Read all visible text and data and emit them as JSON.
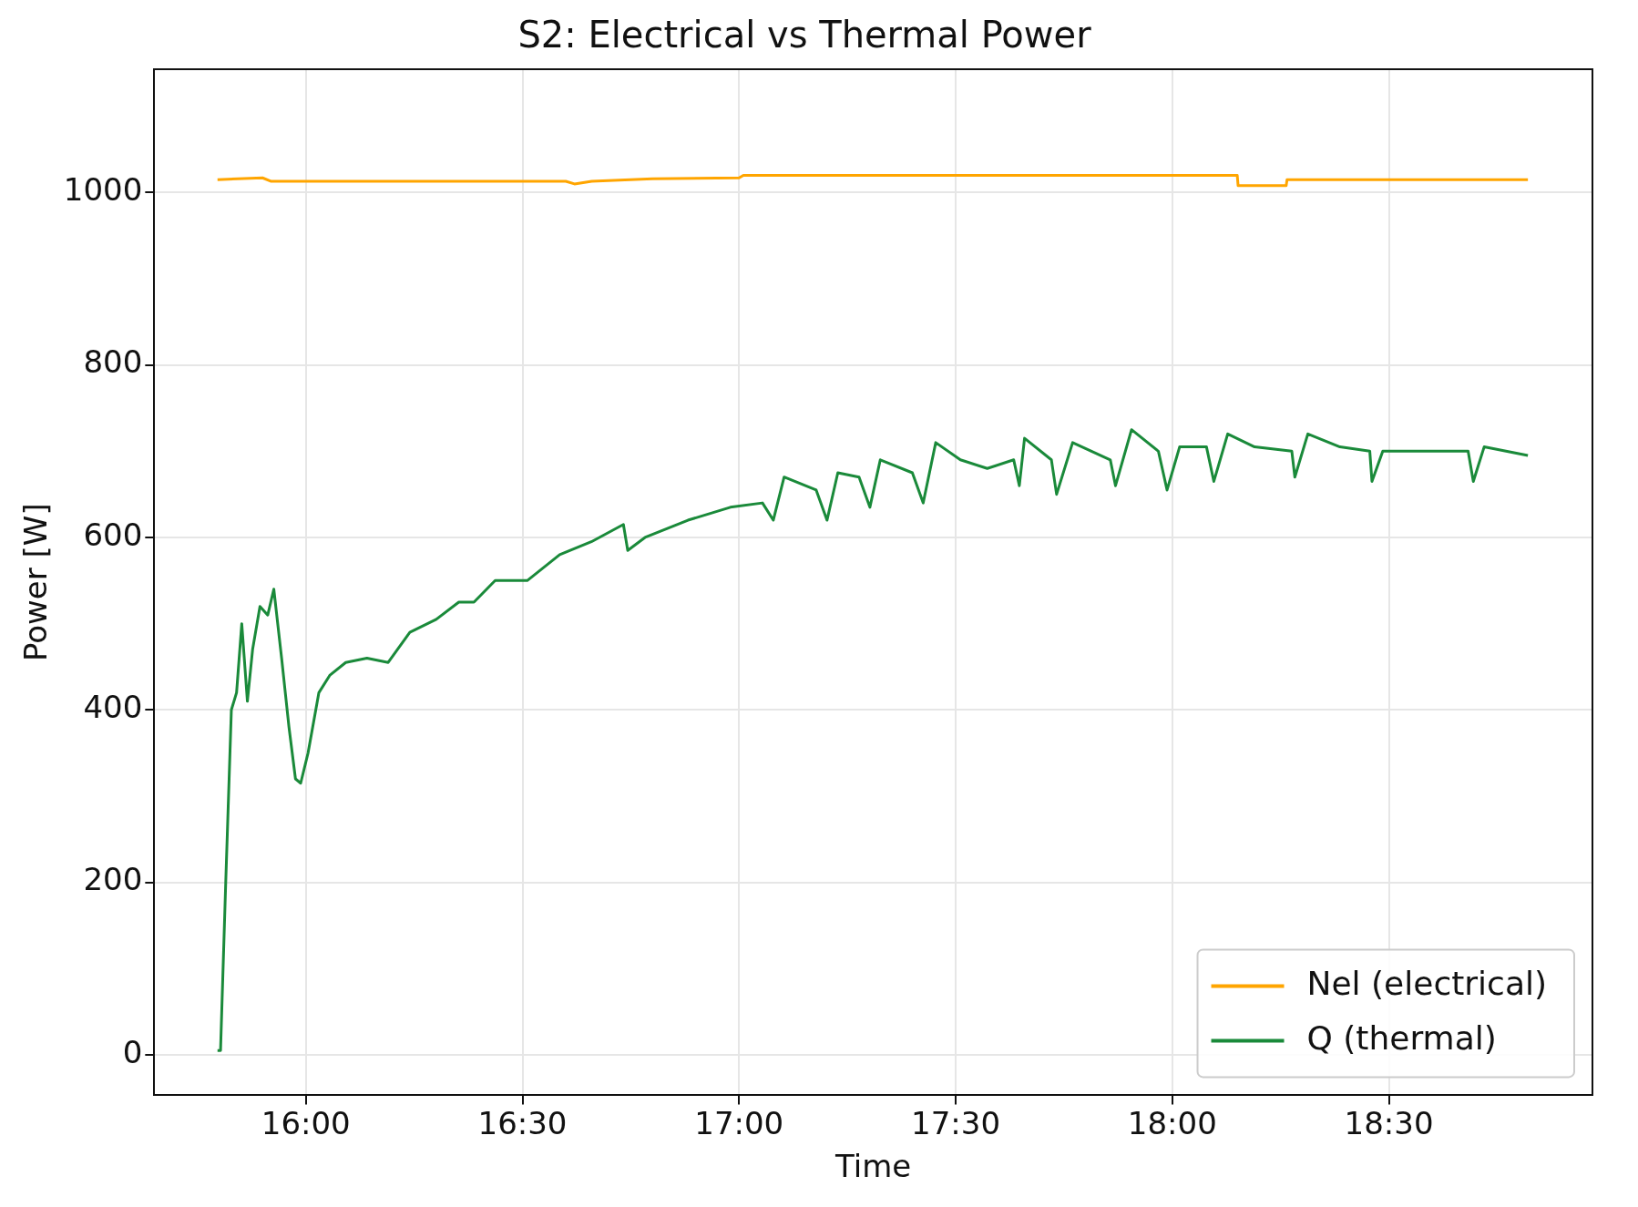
{
  "chart_data": {
    "type": "line",
    "title": "S2: Electrical vs Thermal Power",
    "xlabel": "Time",
    "ylabel": "Power [W]",
    "xlim": [
      15.65,
      18.97
    ],
    "xticks": [
      {
        "value": 16,
        "label": "16:00"
      },
      {
        "value": 16.5,
        "label": "16:30"
      },
      {
        "value": 17,
        "label": "17:00"
      },
      {
        "value": 17.5,
        "label": "17:30"
      },
      {
        "value": 18,
        "label": "18:00"
      },
      {
        "value": 18.5,
        "label": "18:30"
      }
    ],
    "ylim": [
      -47,
      1143
    ],
    "yticks": [
      0,
      200,
      400,
      600,
      800,
      1000
    ],
    "grid": true,
    "legend": "bottom right",
    "marker": "none",
    "line_style": "solid",
    "series": [
      {
        "name": "Nel (electrical)",
        "color": "#ffa500",
        "x": [
          15.796,
          15.9,
          15.92,
          16.6,
          16.62,
          16.66,
          16.8,
          17.0,
          17.01,
          18.15,
          18.152,
          18.263,
          18.265,
          18.821
        ],
        "values": [
          1015,
          1017,
          1013,
          1013,
          1010,
          1013,
          1016,
          1017,
          1020,
          1020,
          1008,
          1008,
          1015,
          1015
        ]
      },
      {
        "name": "Q (thermal)",
        "color": "#1a8a3a",
        "x": [
          15.796,
          15.803,
          15.815,
          15.828,
          15.84,
          15.852,
          15.865,
          15.877,
          15.894,
          15.912,
          15.926,
          15.944,
          15.961,
          15.976,
          15.988,
          16.005,
          16.03,
          16.055,
          16.092,
          16.141,
          16.19,
          16.24,
          16.301,
          16.353,
          16.388,
          16.437,
          16.511,
          16.586,
          16.659,
          16.733,
          16.743,
          16.783,
          16.882,
          16.98,
          17.054,
          17.079,
          17.104,
          17.178,
          17.203,
          17.228,
          17.277,
          17.302,
          17.326,
          17.4,
          17.425,
          17.454,
          17.511,
          17.573,
          17.634,
          17.647,
          17.659,
          17.721,
          17.733,
          17.77,
          17.857,
          17.869,
          17.906,
          17.968,
          17.988,
          18.017,
          18.079,
          18.096,
          18.128,
          18.19,
          18.276,
          18.283,
          18.313,
          18.387,
          18.456,
          18.461,
          18.486,
          18.683,
          18.695,
          18.72,
          18.821
        ],
        "values": [
          5,
          5,
          200,
          400,
          420,
          500,
          410,
          470,
          520,
          510,
          540,
          460,
          380,
          320,
          315,
          350,
          420,
          440,
          455,
          460,
          455,
          490,
          505,
          525,
          525,
          550,
          550,
          580,
          595,
          615,
          585,
          600,
          620,
          635,
          640,
          620,
          670,
          655,
          620,
          675,
          670,
          635,
          690,
          675,
          640,
          710,
          690,
          680,
          690,
          660,
          715,
          690,
          650,
          710,
          690,
          660,
          725,
          700,
          655,
          705,
          705,
          665,
          720,
          705,
          700,
          670,
          720,
          705,
          700,
          665,
          700,
          700,
          665,
          705,
          695
        ]
      }
    ]
  }
}
